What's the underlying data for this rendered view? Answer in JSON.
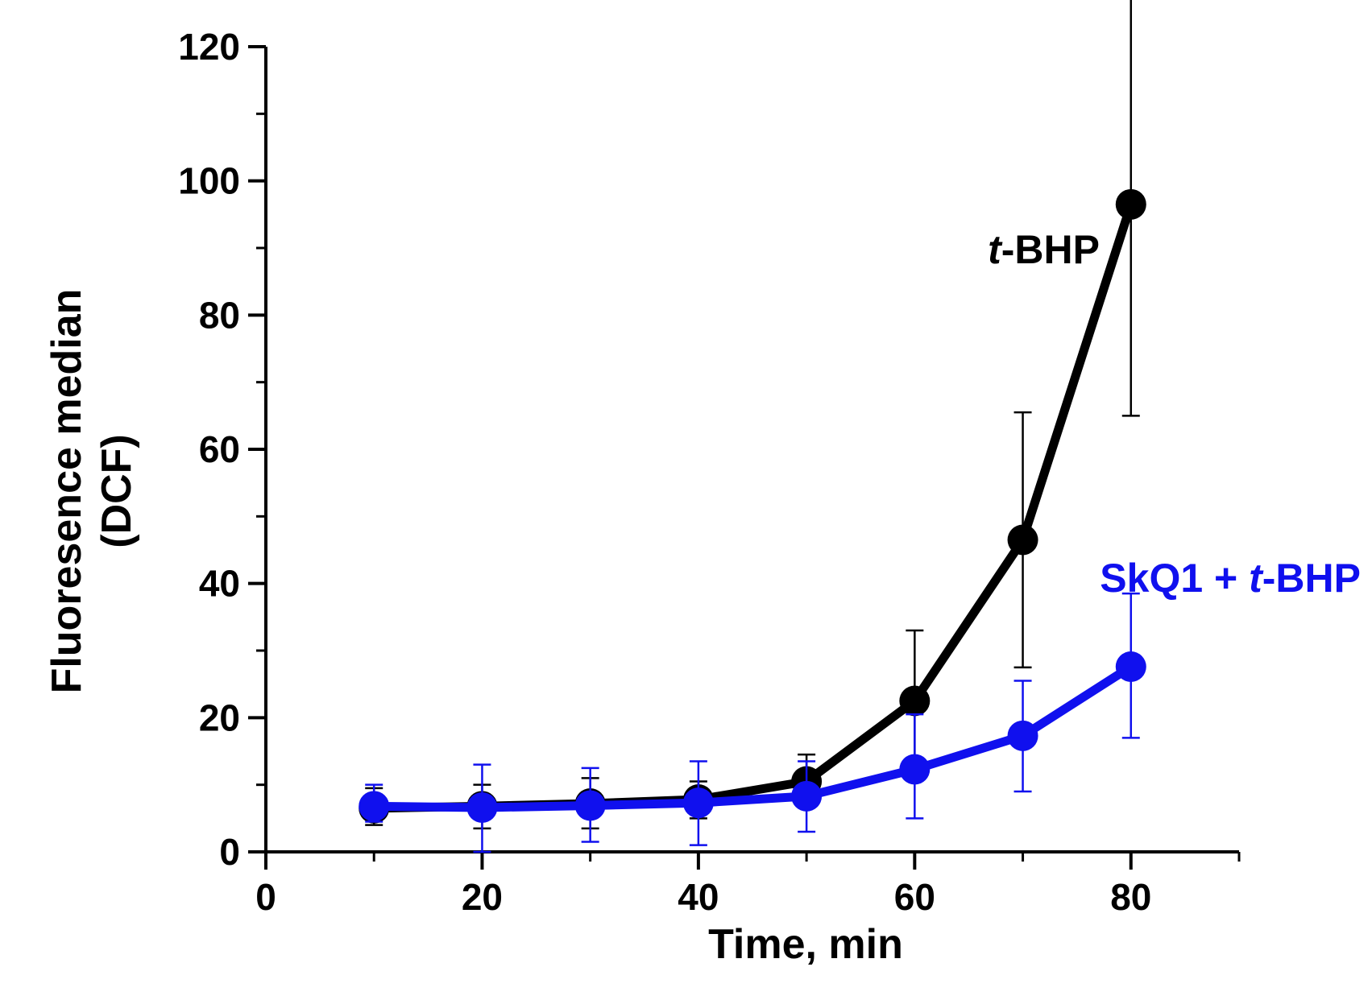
{
  "chart_data": {
    "type": "line",
    "xlabel": "Time, min",
    "ylabel_lines": [
      "Fluoresence median",
      "(DCF)"
    ],
    "xlim": [
      0,
      90
    ],
    "ylim": [
      0,
      120
    ],
    "x_ticks": [
      0,
      20,
      40,
      60,
      80
    ],
    "y_ticks": [
      0,
      20,
      40,
      60,
      80,
      100,
      120
    ],
    "x": [
      10,
      20,
      30,
      40,
      50,
      60,
      70,
      80
    ],
    "series": [
      {
        "name": "t-BHP",
        "label_italic": "t",
        "label_rest": "-BHP",
        "color": "#000000",
        "values": [
          6.5,
          6.8,
          7.2,
          7.8,
          10.5,
          22.5,
          46.5,
          96.5
        ],
        "err_high": [
          9.5,
          10.0,
          11.0,
          10.5,
          14.5,
          33.0,
          65.5,
          128.5
        ],
        "err_low": [
          4.0,
          3.5,
          3.5,
          5.0,
          7.0,
          12.0,
          27.5,
          65.0
        ]
      },
      {
        "name": "SkQ1 + t-BHP",
        "label_pre": "SkQ1 + ",
        "label_italic": "t",
        "label_rest": "-BHP",
        "color": "#1010ee",
        "values": [
          6.8,
          6.6,
          6.9,
          7.3,
          8.3,
          12.3,
          17.3,
          27.6
        ],
        "err_high": [
          10.0,
          13.0,
          12.5,
          13.5,
          13.5,
          20.5,
          25.5,
          38.5
        ],
        "err_low": [
          4.5,
          0.0,
          1.5,
          1.0,
          3.0,
          5.0,
          9.0,
          17.0
        ]
      }
    ]
  }
}
